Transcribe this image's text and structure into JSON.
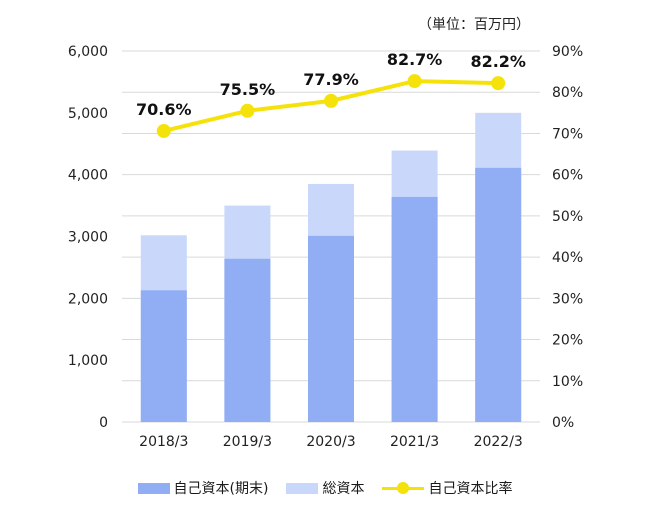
{
  "unit_note": "（単位：百万円）",
  "legend": {
    "equity": "自己資本(期末)",
    "total": "総資本",
    "ratio": "自己資本比率"
  },
  "colors": {
    "equity": "#91AEF5",
    "total": "#C9D8FA",
    "ratio": "#F5E20A",
    "grid": "#D9D9D9"
  },
  "chart_data": {
    "type": "bar",
    "categories": [
      "2018/3",
      "2019/3",
      "2020/3",
      "2021/3",
      "2022/3"
    ],
    "series": [
      {
        "name": "自己資本(期末)",
        "type": "bar",
        "values": [
          2130,
          2640,
          3010,
          3640,
          4110
        ]
      },
      {
        "name": "総資本",
        "type": "bar",
        "values": [
          3020,
          3500,
          3850,
          4390,
          5000
        ]
      },
      {
        "name": "自己資本比率",
        "type": "line",
        "axis": "right",
        "values": [
          70.6,
          75.5,
          77.9,
          82.7,
          82.2
        ]
      }
    ],
    "ratio_labels": [
      "70.6%",
      "75.5%",
      "77.9%",
      "82.7%",
      "82.2%"
    ],
    "left_axis": {
      "ylim": [
        0,
        6000
      ],
      "ticks": [
        "0",
        "1,000",
        "2,000",
        "3,000",
        "4,000",
        "5,000",
        "6,000"
      ]
    },
    "right_axis": {
      "ylim": [
        0,
        90
      ],
      "ticks": [
        "0%",
        "10%",
        "20%",
        "30%",
        "40%",
        "50%",
        "60%",
        "70%",
        "80%",
        "90%"
      ]
    },
    "grid": true,
    "legend_position": "bottom"
  }
}
